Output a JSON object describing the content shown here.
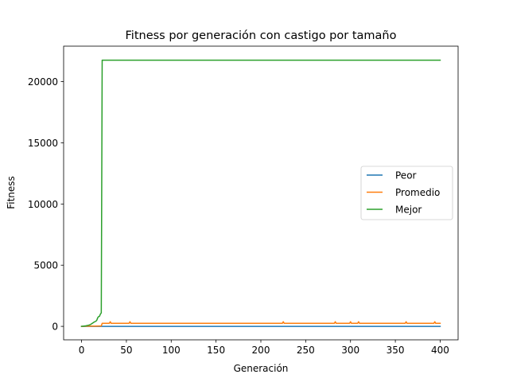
{
  "chart_data": {
    "type": "line",
    "title": "Fitness por generación con castigo por tamaño",
    "xlabel": "Generación",
    "ylabel": "Fitness",
    "xlim": [
      -20,
      420
    ],
    "ylim": [
      -1100,
      22900
    ],
    "xticks": [
      0,
      50,
      100,
      150,
      200,
      250,
      300,
      350,
      400
    ],
    "yticks": [
      0,
      5000,
      10000,
      15000,
      20000
    ],
    "grid": false,
    "legend_position": "center-right",
    "series": [
      {
        "name": "Peor",
        "color": "#1f77b4",
        "points": [
          [
            0,
            0
          ],
          [
            400,
            0
          ]
        ]
      },
      {
        "name": "Promedio",
        "color": "#ff7f0e",
        "points": [
          [
            0,
            0
          ],
          [
            5,
            10
          ],
          [
            10,
            20
          ],
          [
            15,
            25
          ],
          [
            20,
            30
          ],
          [
            22,
            30
          ],
          [
            23,
            250
          ],
          [
            31,
            250
          ],
          [
            32,
            380
          ],
          [
            33,
            250
          ],
          [
            53,
            250
          ],
          [
            54,
            380
          ],
          [
            55,
            250
          ],
          [
            224,
            250
          ],
          [
            225,
            380
          ],
          [
            226,
            250
          ],
          [
            282,
            250
          ],
          [
            283,
            380
          ],
          [
            284,
            250
          ],
          [
            299,
            250
          ],
          [
            300,
            380
          ],
          [
            301,
            250
          ],
          [
            308,
            250
          ],
          [
            309,
            380
          ],
          [
            310,
            250
          ],
          [
            361,
            250
          ],
          [
            362,
            380
          ],
          [
            363,
            250
          ],
          [
            393,
            250
          ],
          [
            394,
            380
          ],
          [
            395,
            250
          ],
          [
            400,
            250
          ]
        ]
      },
      {
        "name": "Mejor",
        "color": "#2ca02c",
        "points": [
          [
            0,
            0
          ],
          [
            5,
            50
          ],
          [
            8,
            100
          ],
          [
            10,
            150
          ],
          [
            12,
            250
          ],
          [
            14,
            350
          ],
          [
            16,
            420
          ],
          [
            17,
            500
          ],
          [
            18,
            700
          ],
          [
            19,
            800
          ],
          [
            20,
            820
          ],
          [
            21,
            1000
          ],
          [
            22,
            1100
          ],
          [
            23,
            21750
          ],
          [
            400,
            21750
          ]
        ]
      }
    ]
  }
}
